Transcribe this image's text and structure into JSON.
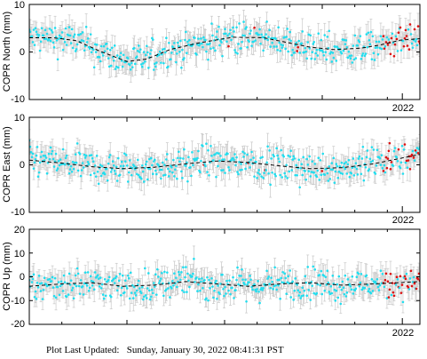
{
  "colors": {
    "points": "#22ddee",
    "points_recent": "#dd1111",
    "error_bars": "#c8c8c8",
    "model_line": "#000000",
    "frame": "#000000",
    "background": "#ffffff"
  },
  "footer_text": "Plot Last Updated:   Sunday, January 30, 2022 08:41:31 PST",
  "chart_data": [
    {
      "type": "scatter",
      "title": "",
      "xlabel": "",
      "ylabel": "COPR North (mm)",
      "ylim": [
        -10,
        10
      ],
      "yticks": [
        "10",
        "0",
        "-10"
      ],
      "xtick_label": "2022",
      "grid": false,
      "series": [
        {
          "values": "daily position estimates with error bars"
        },
        {
          "values": "recent estimates"
        }
      ],
      "model_curve": {
        "x_frac": [
          0,
          0.06,
          0.12,
          0.18,
          0.25,
          0.3,
          0.36,
          0.44,
          0.52,
          0.6,
          0.66,
          0.72,
          0.78,
          0.85,
          0.9,
          0.95,
          1.0
        ],
        "y": [
          3.0,
          3.0,
          2.4,
          0.2,
          -2.0,
          -1.5,
          0.5,
          2.0,
          3.1,
          3.0,
          2.0,
          1.0,
          0.5,
          0.8,
          1.5,
          2.5,
          2.8
        ]
      }
    },
    {
      "type": "scatter",
      "title": "",
      "xlabel": "",
      "ylabel": "COPR East (mm)",
      "ylim": [
        -10,
        10
      ],
      "yticks": [
        "10",
        "0",
        "-10"
      ],
      "xtick_label": "2022",
      "grid": false,
      "series": [
        {
          "values": "daily position estimates with error bars"
        },
        {
          "values": "recent estimates"
        }
      ],
      "model_curve": {
        "x_frac": [
          0,
          0.08,
          0.16,
          0.24,
          0.32,
          0.4,
          0.48,
          0.56,
          0.64,
          0.72,
          0.8,
          0.88,
          0.94,
          1.0
        ],
        "y": [
          1.0,
          0.4,
          -0.4,
          -0.8,
          -0.5,
          0.2,
          0.8,
          0.5,
          -0.2,
          -0.8,
          -0.6,
          0.2,
          1.2,
          2.2
        ]
      }
    },
    {
      "type": "scatter",
      "title": "",
      "xlabel": "",
      "ylabel": "COPR Up (mm)",
      "ylim": [
        -20,
        20
      ],
      "yticks": [
        "20",
        "10",
        "0",
        "-10",
        "-20"
      ],
      "xtick_label": "2022",
      "grid": false,
      "series": [
        {
          "values": "daily position estimates with error bars"
        },
        {
          "values": "recent estimates"
        }
      ],
      "model_curve": {
        "x_frac": [
          0,
          0.08,
          0.16,
          0.24,
          0.32,
          0.4,
          0.48,
          0.56,
          0.64,
          0.72,
          0.8,
          0.88,
          0.94,
          1.0
        ],
        "y": [
          -4.0,
          -3.0,
          -2.5,
          -4.0,
          -3.5,
          -2.0,
          -3.0,
          -4.0,
          -3.0,
          -2.5,
          -3.5,
          -3.0,
          -2.5,
          -2.0
        ]
      }
    }
  ]
}
